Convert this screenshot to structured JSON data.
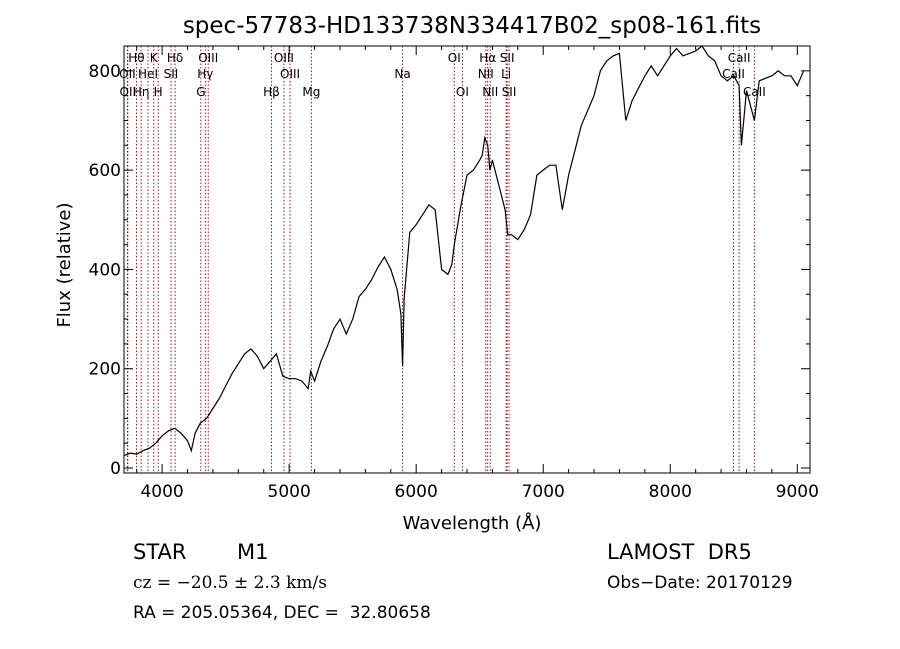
{
  "chart_data": {
    "type": "line",
    "title": "spec-57783-HD133738N334417B02_sp08-161.fits",
    "xlabel": "Wavelength (Å)",
    "ylabel": "Flux (relative)",
    "xlim": [
      3700,
      9100
    ],
    "ylim": [
      -10,
      850
    ],
    "xticks": [
      4000,
      5000,
      6000,
      7000,
      8000,
      9000
    ],
    "yticks": [
      0,
      200,
      400,
      600,
      800
    ],
    "grid": false,
    "series": [
      {
        "x": [
          3700,
          3750,
          3800,
          3850,
          3900,
          3950,
          4000,
          4050,
          4100,
          4150,
          4200,
          4230,
          4260,
          4300,
          4350,
          4400,
          4450,
          4500,
          4550,
          4600,
          4650,
          4700,
          4750,
          4800,
          4850,
          4900,
          4950,
          5000,
          5050,
          5100,
          5150,
          5170,
          5200,
          5250,
          5300,
          5350,
          5400,
          5450,
          5500,
          5550,
          5600,
          5650,
          5700,
          5750,
          5800,
          5850,
          5880,
          5893,
          5905,
          5950,
          6000,
          6050,
          6100,
          6150,
          6200,
          6250,
          6280,
          6300,
          6350,
          6400,
          6450,
          6500,
          6520,
          6540,
          6563,
          6580,
          6600,
          6650,
          6700,
          6720,
          6750,
          6800,
          6850,
          6900,
          6950,
          7000,
          7050,
          7100,
          7150,
          7200,
          7250,
          7300,
          7350,
          7400,
          7450,
          7500,
          7550,
          7600,
          7650,
          7700,
          7750,
          7800,
          7850,
          7900,
          7950,
          8000,
          8050,
          8100,
          8150,
          8200,
          8250,
          8300,
          8350,
          8400,
          8450,
          8500,
          8542,
          8560,
          8600,
          8662,
          8700,
          8750,
          8800,
          8850,
          8900,
          8950,
          9000,
          9050
        ],
        "values": [
          25,
          30,
          28,
          35,
          40,
          50,
          65,
          75,
          80,
          70,
          55,
          35,
          70,
          90,
          100,
          120,
          140,
          165,
          190,
          210,
          230,
          240,
          225,
          200,
          215,
          230,
          185,
          180,
          180,
          175,
          160,
          195,
          175,
          215,
          245,
          280,
          300,
          270,
          300,
          345,
          360,
          380,
          405,
          425,
          400,
          360,
          310,
          205,
          340,
          475,
          490,
          510,
          530,
          520,
          400,
          390,
          410,
          450,
          525,
          590,
          600,
          620,
          630,
          665,
          650,
          600,
          620,
          570,
          520,
          470,
          470,
          460,
          480,
          510,
          590,
          600,
          610,
          610,
          520,
          590,
          640,
          690,
          720,
          750,
          800,
          820,
          830,
          835,
          700,
          740,
          765,
          790,
          810,
          790,
          810,
          830,
          845,
          830,
          835,
          840,
          850,
          830,
          820,
          790,
          780,
          790,
          770,
          650,
          760,
          700,
          780,
          785,
          790,
          800,
          790,
          790,
          770,
          800
        ]
      }
    ],
    "lines": [
      {
        "label": "Hθ",
        "x": 3798,
        "row": 1
      },
      {
        "label": "K",
        "x": 3934,
        "row": 1
      },
      {
        "label": "Hδ",
        "x": 4102,
        "row": 1
      },
      {
        "label": "OIII",
        "x": 4363,
        "row": 1
      },
      {
        "label": "OIII",
        "x": 4959,
        "row": 1
      },
      {
        "label": "OI",
        "x": 6300,
        "row": 1
      },
      {
        "label": "Hα",
        "x": 6563,
        "row": 1
      },
      {
        "label": "SII",
        "x": 6716,
        "row": 1
      },
      {
        "label": "CaII",
        "x": 8542,
        "row": 1
      },
      {
        "label": "OII",
        "x": 3727,
        "row": 2
      },
      {
        "label": "HeI",
        "x": 3889,
        "row": 2
      },
      {
        "label": "SII",
        "x": 4070,
        "row": 2
      },
      {
        "label": "Hγ",
        "x": 4340,
        "row": 2
      },
      {
        "label": "OIII",
        "x": 5007,
        "row": 2
      },
      {
        "label": "Na",
        "x": 5893,
        "row": 2
      },
      {
        "label": "NII",
        "x": 6548,
        "row": 2
      },
      {
        "label": "Li",
        "x": 6708,
        "row": 2
      },
      {
        "label": "CaII",
        "x": 8498,
        "row": 2
      },
      {
        "label": "OII",
        "x": 3730,
        "row": 3
      },
      {
        "label": "Hη",
        "x": 3835,
        "row": 3
      },
      {
        "label": "H",
        "x": 3969,
        "row": 3
      },
      {
        "label": "G",
        "x": 4305,
        "row": 3
      },
      {
        "label": "Hβ",
        "x": 4861,
        "row": 3
      },
      {
        "label": "Mg",
        "x": 5175,
        "row": 3
      },
      {
        "label": "OI",
        "x": 6364,
        "row": 3
      },
      {
        "label": "NII",
        "x": 6583,
        "row": 3
      },
      {
        "label": "SII",
        "x": 6731,
        "row": 3
      },
      {
        "label": "CaII",
        "x": 8662,
        "row": 3
      }
    ],
    "line_color": "#8b0000"
  },
  "info": {
    "object_type": "STAR",
    "subclass": "M1",
    "survey": "LAMOST  DR5",
    "cz": "cz = −20.5 ± 2.3 km/s",
    "obs_date": "Obs−Date: 20170129",
    "coords": "RA = 205.05364, DEC =  32.80658"
  }
}
